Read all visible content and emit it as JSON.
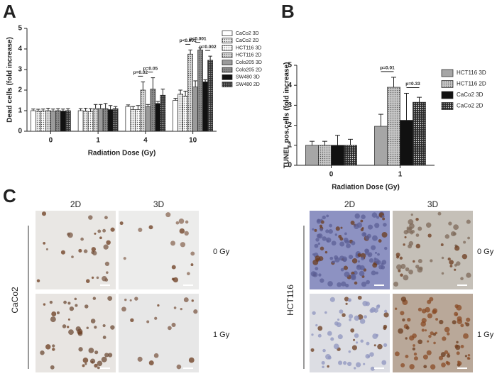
{
  "panels": {
    "a": "A",
    "b": "B",
    "c": "C"
  },
  "chart_data": [
    {
      "type": "bar",
      "y_label": "Dead cells (fold increase)",
      "x_label": "Radiation Dose (Gy)",
      "categories": [
        "0",
        "1",
        "4",
        "10"
      ],
      "ylim": [
        0,
        5
      ],
      "yticks": [
        0,
        1,
        2,
        3,
        4,
        5
      ],
      "series": [
        {
          "name": "CaCo2 3D",
          "color": "#ffffff",
          "values": [
            1.0,
            1.0,
            1.2,
            1.5
          ],
          "errors": [
            0.08,
            0.1,
            0.08,
            0.1
          ]
        },
        {
          "name": "CaCo2 2D",
          "color": "#f0f0f0",
          "pattern": "dots",
          "values": [
            0.97,
            0.97,
            1.05,
            1.8
          ],
          "errors": [
            0.1,
            0.15,
            0.15,
            0.2
          ]
        },
        {
          "name": "HCT116 3D",
          "color": "#ffffff",
          "pattern": "dots",
          "values": [
            0.98,
            0.95,
            1.05,
            1.7
          ],
          "errors": [
            0.1,
            0.15,
            0.2,
            0.25
          ]
        },
        {
          "name": "HCT116 2D",
          "color": "#d9d9d9",
          "pattern": "dots",
          "values": [
            1.0,
            1.1,
            2.0,
            3.75
          ],
          "errors": [
            0.12,
            0.2,
            0.4,
            0.2
          ]
        },
        {
          "name": "Colo205 3D",
          "color": "#9a9a9a",
          "values": [
            0.98,
            1.1,
            1.2,
            2.15
          ],
          "errors": [
            0.1,
            0.2,
            0.1,
            0.3
          ]
        },
        {
          "name": "Colo205 2D",
          "color": "#8a8a8a",
          "pattern": "dots",
          "values": [
            1.0,
            1.1,
            2.05,
            3.95
          ],
          "errors": [
            0.1,
            0.25,
            0.55,
            0.1
          ]
        },
        {
          "name": "SW480 3D",
          "color": "#111111",
          "values": [
            0.98,
            1.05,
            1.35,
            2.4
          ],
          "errors": [
            0.1,
            0.2,
            0.1,
            0.1
          ]
        },
        {
          "name": "SW480 2D",
          "color": "#333333",
          "pattern": "dots",
          "values": [
            1.0,
            1.1,
            1.75,
            3.45
          ],
          "errors": [
            0.1,
            0.1,
            0.3,
            0.2
          ]
        }
      ],
      "annotations": [
        "p=0.02",
        "p=0.05",
        "p<0.001",
        "p<0.001",
        "p=0.002"
      ]
    },
    {
      "type": "bar",
      "y_label": "TUNEL pos.cells (fold increase)",
      "x_label": "Radiation Dose (Gy)",
      "categories": [
        "0",
        "1"
      ],
      "ylim": [
        0,
        5
      ],
      "yticks": [
        0,
        1,
        2,
        3,
        4,
        5
      ],
      "series": [
        {
          "name": "HCT116 3D",
          "color": "#a6a6a6",
          "values": [
            1.0,
            1.95
          ],
          "errors": [
            0.2,
            0.6
          ]
        },
        {
          "name": "HCT116 2D",
          "color": "#c8c8c8",
          "pattern": "dots",
          "values": [
            1.0,
            3.9
          ],
          "errors": [
            0.2,
            0.5
          ]
        },
        {
          "name": "CaCo2 3D",
          "color": "#111111",
          "values": [
            1.0,
            2.25
          ],
          "errors": [
            0.5,
            1.35
          ]
        },
        {
          "name": "CaCo2 2D",
          "color": "#2a2a2a",
          "pattern": "dots",
          "values": [
            1.0,
            3.15
          ],
          "errors": [
            0.3,
            0.25
          ]
        }
      ],
      "annotations": [
        "p=0.01",
        "p=0.33"
      ]
    }
  ],
  "micrographs": {
    "columns": [
      "2D",
      "3D"
    ],
    "rows": [
      "0 Gy",
      "1 Gy"
    ],
    "lines": [
      "CaCo2",
      "HCT116"
    ]
  }
}
